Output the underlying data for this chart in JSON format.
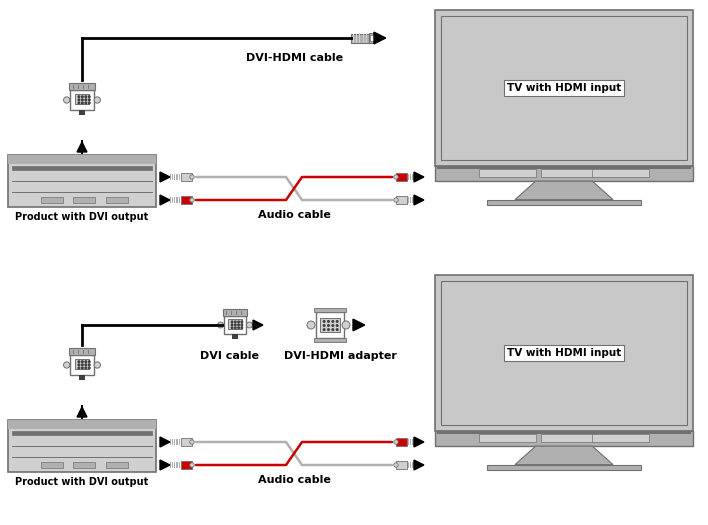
{
  "bg_color": "#ffffff",
  "diagram1": {
    "product_label": "Product with DVI output",
    "cable_label": "DVI-HDMI cable",
    "audio_label": "Audio cable",
    "tv_label": "TV with HDMI input"
  },
  "diagram2": {
    "product_label": "Product with DVI output",
    "dvi_cable_label": "DVI cable",
    "adapter_label": "DVI-HDMI adapter",
    "audio_label": "Audio cable",
    "tv_label": "TV with HDMI input"
  },
  "gray_light": "#d0d0d0",
  "gray_medium": "#b0b0b0",
  "gray_dark": "#707070",
  "gray_darkest": "#404040",
  "black": "#000000",
  "red": "#cc0000",
  "white": "#ffffff",
  "text_color": "#000000",
  "tv_screen_gray": "#c8c8c8",
  "tv_bezel_gray": "#b8b8b8"
}
